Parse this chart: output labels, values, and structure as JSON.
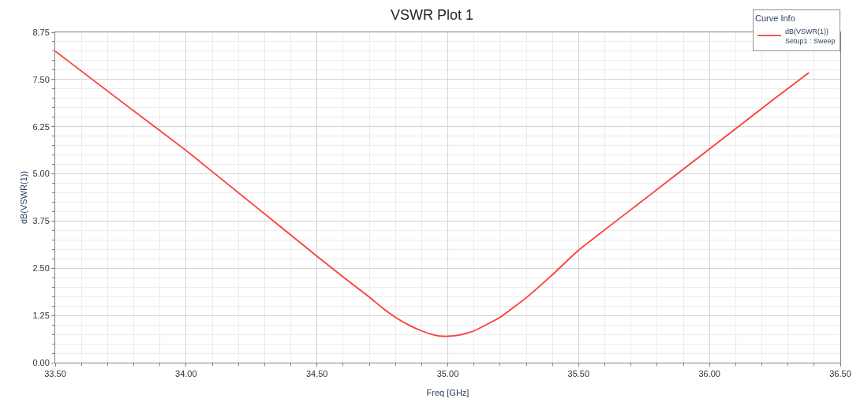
{
  "chart_data": {
    "type": "line",
    "title": "VSWR Plot 1",
    "xlabel": "Freq [GHz]",
    "ylabel": "dB(VSWR(1))",
    "legend_title": "Curve Info",
    "x": [
      33.5,
      33.75,
      34.0,
      34.25,
      34.5,
      34.6,
      34.7,
      34.75,
      34.8,
      34.85,
      34.9,
      34.95,
      34.98,
      35.0,
      35.05,
      35.1,
      35.2,
      35.3,
      35.4,
      35.5,
      35.75,
      36.0,
      36.25,
      36.38
    ],
    "series": [
      {
        "name": "dB(VSWR(1))\nSetup1 : Sweep",
        "color": "#ff3b3b",
        "values": [
          8.25,
          6.93,
          5.62,
          4.22,
          2.82,
          2.27,
          1.74,
          1.45,
          1.2,
          1.0,
          0.84,
          0.73,
          0.7,
          0.7,
          0.74,
          0.84,
          1.2,
          1.72,
          2.33,
          2.98,
          4.32,
          5.66,
          7.0,
          7.68
        ]
      }
    ],
    "xlim": [
      33.5,
      36.5
    ],
    "xticks": [
      {
        "value": 33.5,
        "label": "33.50"
      },
      {
        "value": 34.0,
        "label": "34.00"
      },
      {
        "value": 34.5,
        "label": "34.50"
      },
      {
        "value": 35.0,
        "label": "35.00"
      },
      {
        "value": 35.5,
        "label": "35.50"
      },
      {
        "value": 36.0,
        "label": "36.00"
      },
      {
        "value": 36.5,
        "label": "36.50"
      }
    ],
    "ylim": [
      0,
      8.75
    ],
    "yticks": [
      {
        "value": 0,
        "label": "0.00"
      },
      {
        "value": 1.25,
        "label": "1.25"
      },
      {
        "value": 2.5,
        "label": "2.50"
      },
      {
        "value": 3.75,
        "label": "3.75"
      },
      {
        "value": 5.0,
        "label": "5.00"
      },
      {
        "value": 6.25,
        "label": "6.25"
      },
      {
        "value": 7.5,
        "label": "7.50"
      },
      {
        "value": 8.75,
        "label": "8.75"
      }
    ],
    "grid": true,
    "legend": "top right",
    "marker": "none",
    "line_style": "solid"
  }
}
